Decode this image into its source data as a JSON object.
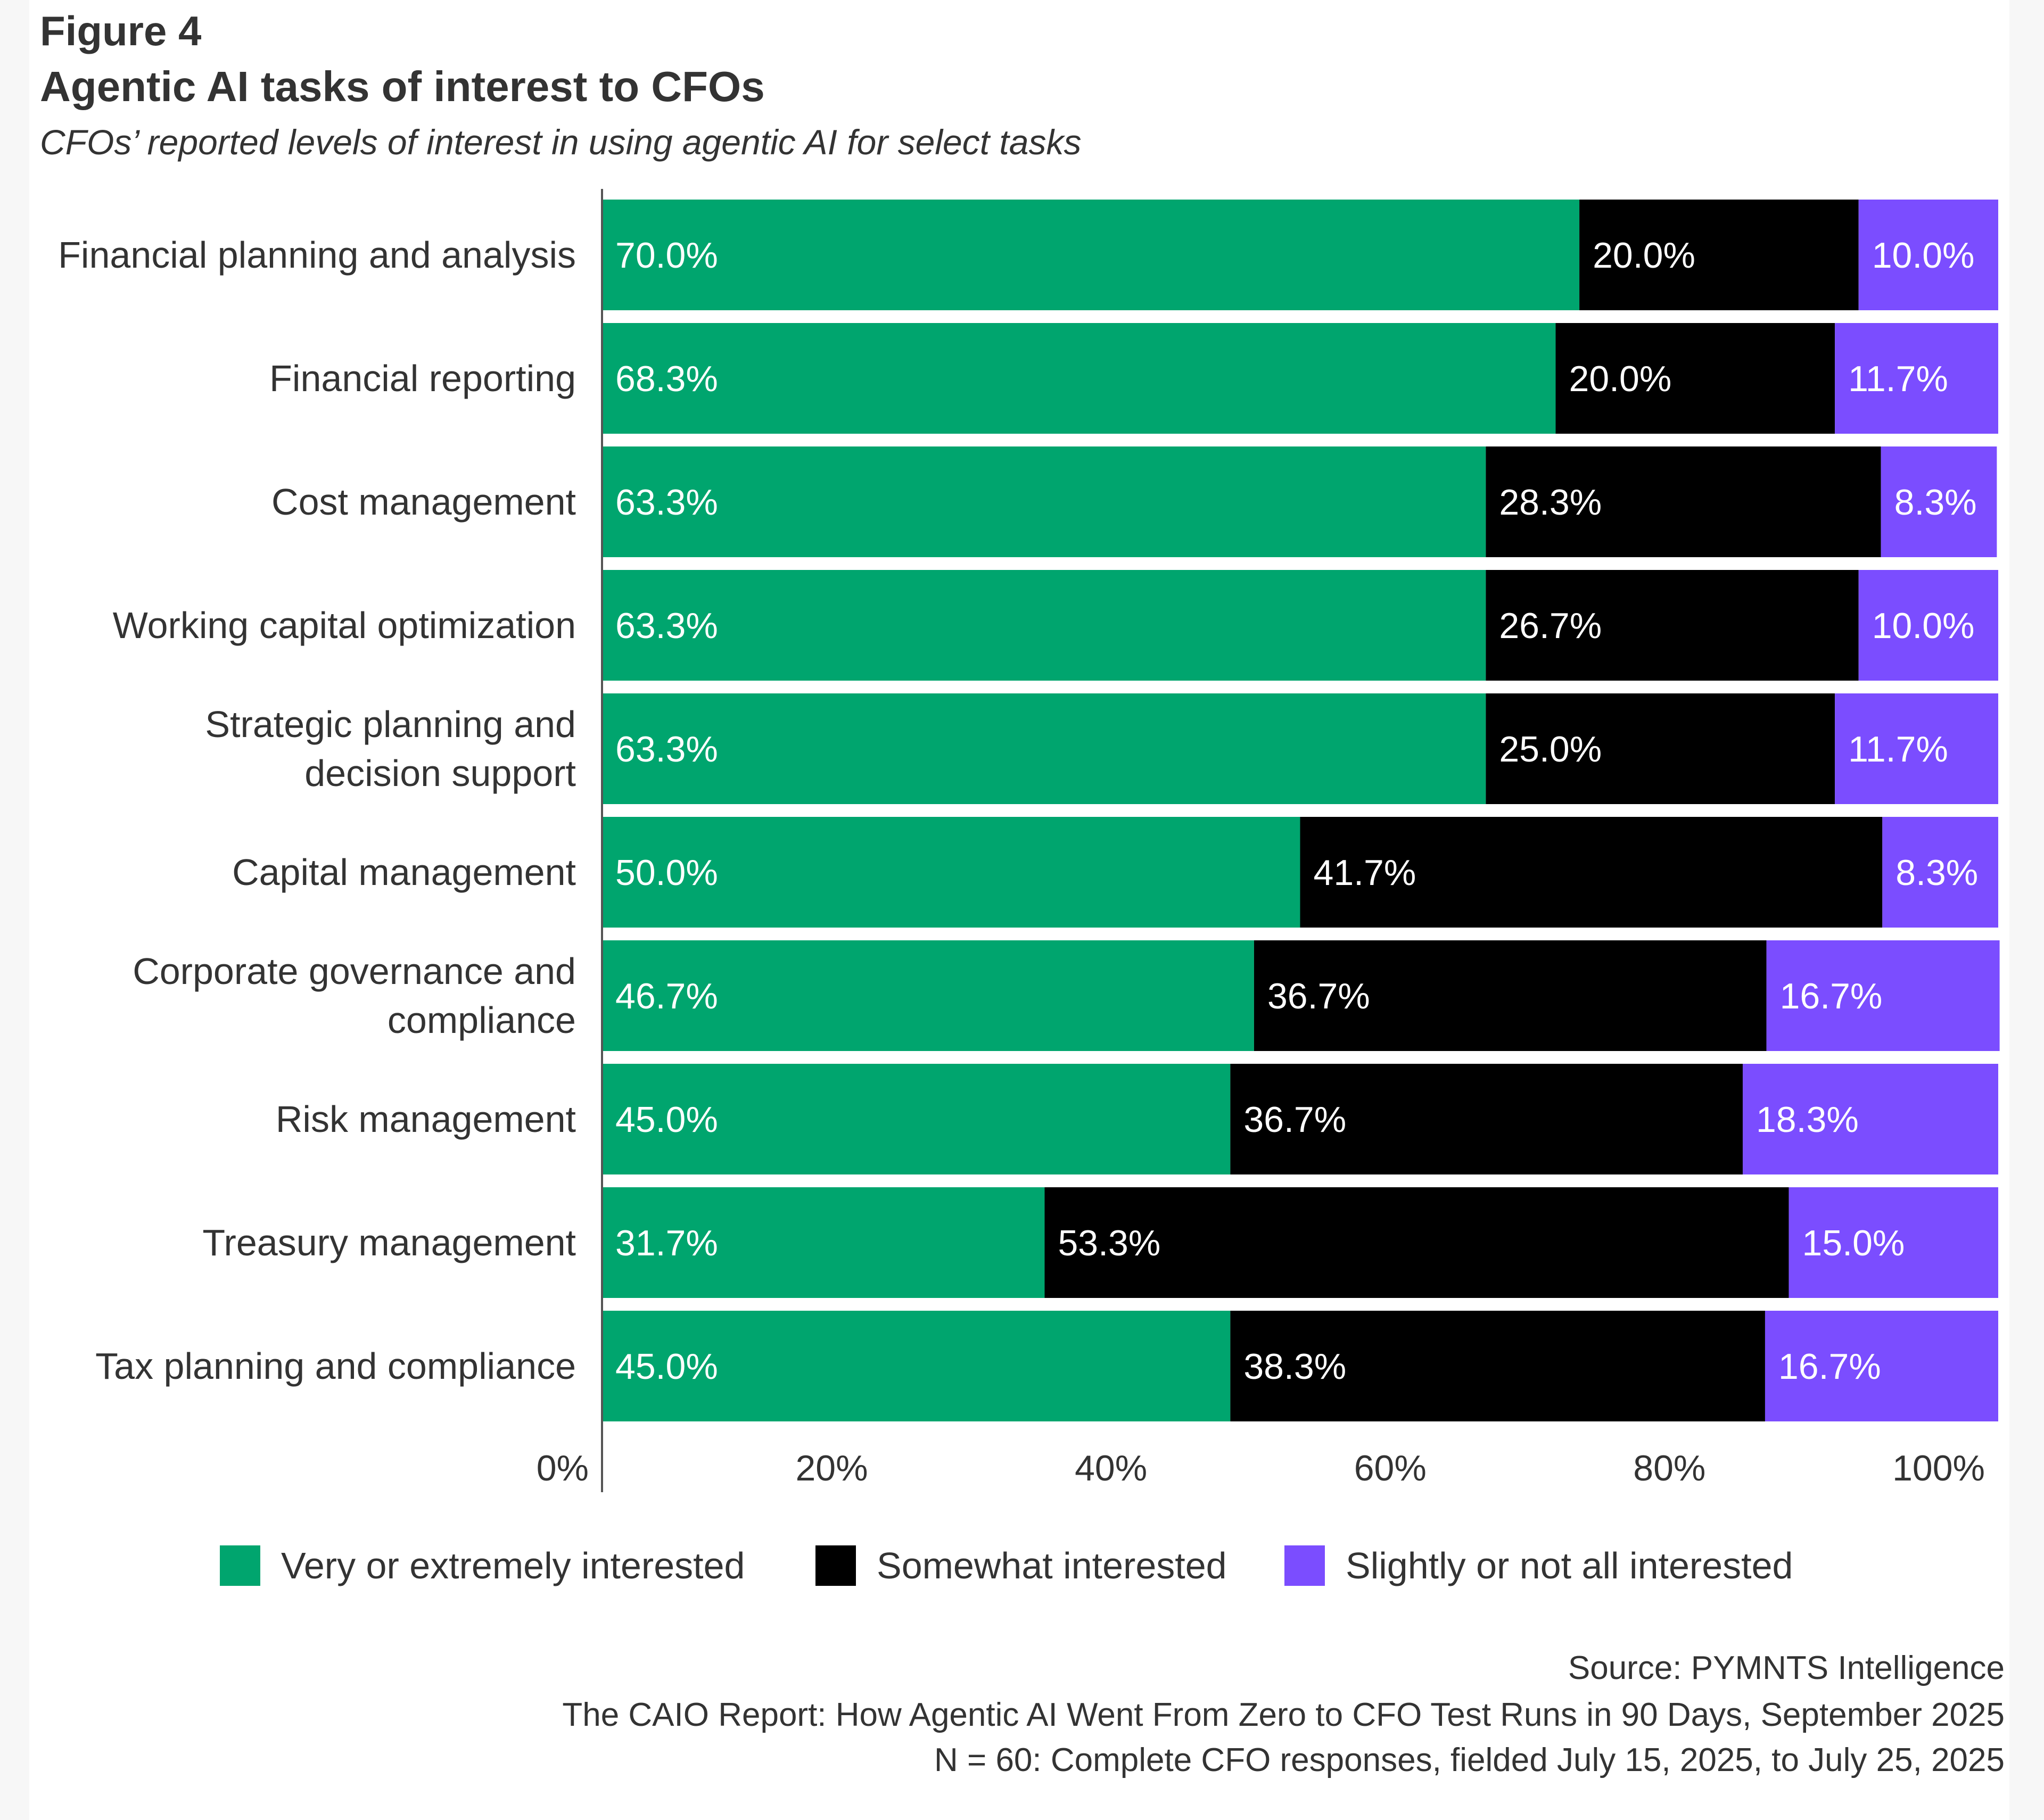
{
  "header": {
    "figure_label": "Figure 4",
    "title": "Agentic AI tasks of interest to CFOs",
    "subtitle": "CFOs’ reported levels of interest in using agentic AI for select tasks"
  },
  "footer": {
    "source": "Source: PYMNTS Intelligence",
    "report": "The CAIO Report: How Agentic AI Went From Zero to CFO Test Runs in 90 Days, September 2025",
    "sample": "N = 60: Complete CFO responses, fielded July 15, 2025, to July 25, 2025"
  },
  "chart_data": {
    "type": "bar",
    "orientation": "horizontal",
    "stacked": true,
    "title": "Agentic AI tasks of interest to CFOs",
    "subtitle": "CFOs’ reported levels of interest in using agentic AI for select tasks",
    "categories": [
      "Financial planning and analysis",
      "Financial reporting",
      "Cost management",
      "Working capital optimization",
      "Strategic planning and decision support",
      "Capital management",
      "Corporate governance and compliance",
      "Risk management",
      "Treasury management",
      "Tax planning and compliance"
    ],
    "series": [
      {
        "name": "Very or extremely interested",
        "color": "#00a56e",
        "values": [
          70.0,
          68.3,
          63.3,
          63.3,
          63.3,
          50.0,
          46.7,
          45.0,
          31.7,
          45.0
        ]
      },
      {
        "name": "Somewhat interested",
        "color": "#000000",
        "values": [
          20.0,
          20.0,
          28.3,
          26.7,
          25.0,
          41.7,
          36.7,
          36.7,
          53.3,
          38.3
        ]
      },
      {
        "name": "Slightly or not all interested",
        "color": "#7b4dff",
        "values": [
          10.0,
          11.7,
          8.3,
          10.0,
          11.7,
          8.3,
          16.7,
          18.3,
          15.0,
          16.7
        ]
      }
    ],
    "xlim": [
      0,
      100
    ],
    "xticks": [
      "0%",
      "20%",
      "40%",
      "60%",
      "80%",
      "100%"
    ],
    "value_format": "percent, 1 decimal",
    "grid": false,
    "legend_position": "bottom"
  }
}
